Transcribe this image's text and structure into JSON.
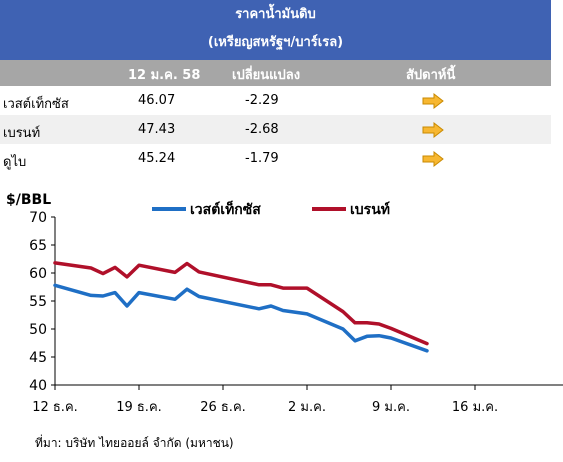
{
  "table": {
    "title_line1": "ราคาน้ำมันดิบ",
    "title_line2": "(เหรียญสหรัฐฯ/บาร์เรล)",
    "headers": [
      "",
      "12 ม.ค. 58",
      "เปลี่ยนแปลง",
      "สัปดาห์นี้"
    ],
    "rows": [
      {
        "name": "เวสต์เท็กซัส",
        "price": "46.07",
        "change": "-2.29",
        "trend_icon": "right-arrow"
      },
      {
        "name": "เบรนท์",
        "price": "47.43",
        "change": "-2.68",
        "trend_icon": "right-arrow"
      },
      {
        "name": "ดูไบ",
        "price": "45.24",
        "change": "-1.79",
        "trend_icon": "right-arrow"
      }
    ],
    "arrow_color": "#f7b731"
  },
  "chart_data": {
    "type": "line",
    "ylabel": "$/BBL",
    "ylim": [
      40,
      70
    ],
    "yticks": [
      40,
      45,
      50,
      55,
      60,
      65,
      70
    ],
    "x_tick_labels": [
      "12 ธ.ค.",
      "19 ธ.ค.",
      "26 ธ.ค.",
      "2 ม.ค.",
      "9 ม.ค.",
      "16 ม.ค."
    ],
    "legend_position": "top",
    "series": [
      {
        "name": "เวสต์เท็กซัส",
        "color": "#1f6fc5",
        "points": [
          [
            "12 ธ.ค.",
            57.8
          ],
          [
            "15 ธ.ค.",
            56.0
          ],
          [
            "16 ธ.ค.",
            55.9
          ],
          [
            "17 ธ.ค.",
            56.5
          ],
          [
            "18 ธ.ค.",
            54.1
          ],
          [
            "19 ธ.ค.",
            56.5
          ],
          [
            "22 ธ.ค.",
            55.3
          ],
          [
            "23 ธ.ค.",
            57.1
          ],
          [
            "24 ธ.ค.",
            55.8
          ],
          [
            "29 ธ.ค.",
            53.6
          ],
          [
            "30 ธ.ค.",
            54.1
          ],
          [
            "31 ธ.ค.",
            53.3
          ],
          [
            "2 ม.ค.",
            52.7
          ],
          [
            "5 ม.ค.",
            50.0
          ],
          [
            "6 ม.ค.",
            47.9
          ],
          [
            "7 ม.ค.",
            48.7
          ],
          [
            "8 ม.ค.",
            48.8
          ],
          [
            "9 ม.ค.",
            48.4
          ],
          [
            "12 ม.ค.",
            46.1
          ]
        ]
      },
      {
        "name": "เบรนท์",
        "color": "#b0102a",
        "points": [
          [
            "12 ธ.ค.",
            61.8
          ],
          [
            "15 ธ.ค.",
            60.9
          ],
          [
            "16 ธ.ค.",
            59.9
          ],
          [
            "17 ธ.ค.",
            61.0
          ],
          [
            "18 ธ.ค.",
            59.3
          ],
          [
            "19 ธ.ค.",
            61.4
          ],
          [
            "22 ธ.ค.",
            60.1
          ],
          [
            "23 ธ.ค.",
            61.7
          ],
          [
            "24 ธ.ค.",
            60.2
          ],
          [
            "29 ธ.ค.",
            57.9
          ],
          [
            "30 ธ.ค.",
            57.9
          ],
          [
            "31 ธ.ค.",
            57.3
          ],
          [
            "2 ม.ค.",
            57.3
          ],
          [
            "5 ม.ค.",
            53.1
          ],
          [
            "6 ม.ค.",
            51.1
          ],
          [
            "7 ม.ค.",
            51.1
          ],
          [
            "8 ม.ค.",
            50.9
          ],
          [
            "9 ม.ค.",
            50.1
          ],
          [
            "12 ม.ค.",
            47.4
          ]
        ]
      }
    ]
  },
  "source": "ที่มา: บริษัท ไทยออยล์ จำกัด (มหาชน)"
}
